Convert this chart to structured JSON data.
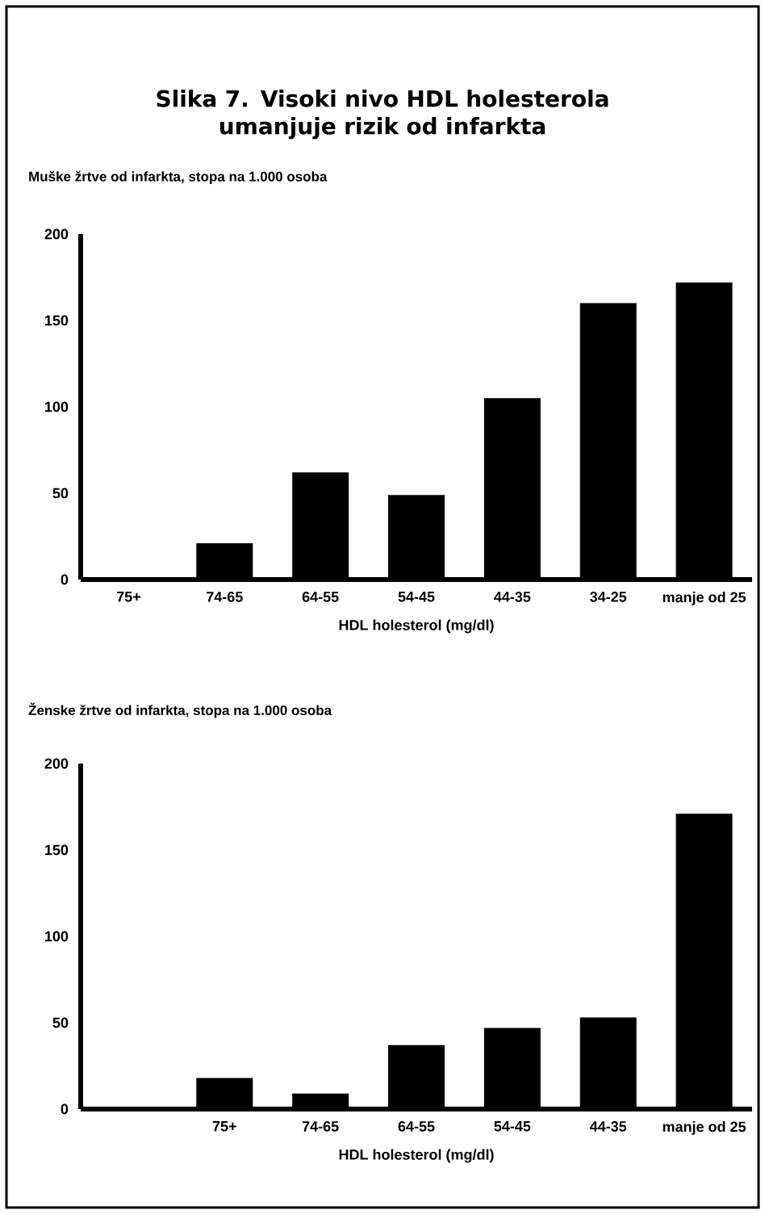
{
  "chart_data": [
    {
      "type": "bar",
      "title": "Slika 7. Visoki nivo HDL holesterola umanjuje rizik od infarkta",
      "subtitle": "Muške žrtve od infarkta, stopa na 1.000 osoba",
      "xlabel": "HDL holesterol (mg/dl)",
      "categories": [
        "75+",
        "74-65",
        "64-55",
        "54-45",
        "44-35",
        "34-25",
        "manje od 25"
      ],
      "values": [
        0,
        21,
        62,
        49,
        105,
        160,
        172
      ],
      "color": "#000000",
      "ylim": [
        0,
        200
      ],
      "yticks": [
        0,
        50,
        100,
        150,
        200
      ]
    },
    {
      "type": "bar",
      "subtitle": "Ženske žrtve od infarkta, stopa na 1.000 osoba",
      "xlabel": "HDL holesterol (mg/dl)",
      "categories": [
        null,
        "75+",
        "74-65",
        "64-55",
        "54-45",
        "44-35",
        "manje od 25"
      ],
      "values": [
        null,
        18,
        9,
        37,
        47,
        53,
        171
      ],
      "color": "#000000",
      "ylim": [
        0,
        200
      ],
      "yticks": [
        0,
        50,
        100,
        150,
        200
      ]
    }
  ]
}
